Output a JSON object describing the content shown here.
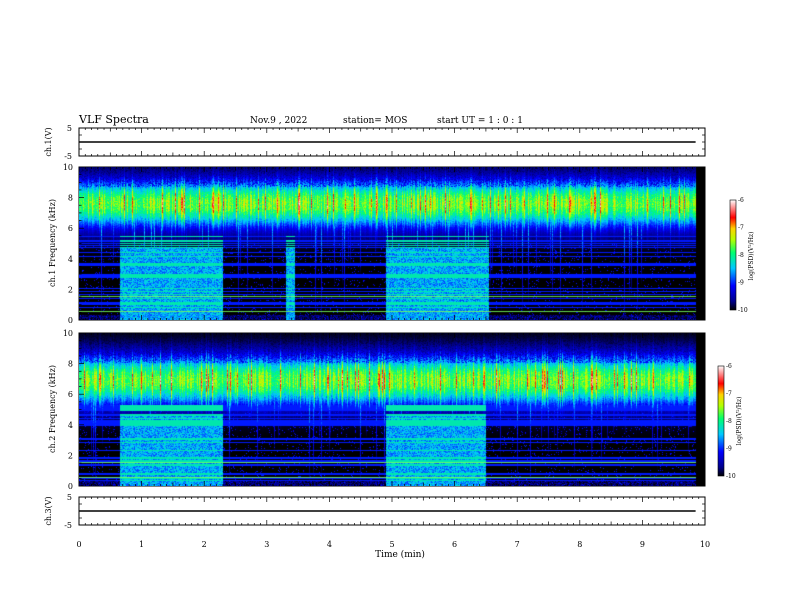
{
  "header": {
    "title": "VLF Spectra",
    "date": "Nov.9 , 2022",
    "station": "station= MOS",
    "start": "start UT = 1 : 0 : 1"
  },
  "chart_data": [
    {
      "type": "line",
      "panel": "ch1-voltage",
      "ylabel": "ch.1(V)",
      "yticks": [
        "5",
        "-5"
      ],
      "ylim": [
        -5,
        5
      ],
      "xlim": [
        0,
        10
      ],
      "x": [
        0,
        9.85
      ],
      "values": [
        0,
        0
      ]
    },
    {
      "type": "heatmap",
      "panel": "ch1-spectrogram",
      "ylabel": "ch.1 Frequency (kHz)",
      "yticks": [
        "0",
        "2",
        "4",
        "6",
        "8",
        "10"
      ],
      "ylim": [
        0,
        10
      ],
      "xlim": [
        0,
        10
      ],
      "data_end_min": 9.85,
      "main_band_khz": [
        5.8,
        9.4
      ],
      "enhanced_low_band": [
        [
          0.65,
          2.3
        ],
        [
          3.3,
          3.45
        ],
        [
          4.9,
          6.55
        ]
      ],
      "colorbar": {
        "label": "log(PSD)(V²/Hz)",
        "ticks": [
          "-6",
          "-7",
          "-8",
          "-9",
          "-10"
        ],
        "range": [
          -10,
          -6
        ]
      }
    },
    {
      "type": "heatmap",
      "panel": "ch2-spectrogram",
      "ylabel": "ch.2 Frequency (kHz)",
      "yticks": [
        "0",
        "2",
        "4",
        "6",
        "8",
        "10"
      ],
      "ylim": [
        0,
        10
      ],
      "xlim": [
        0,
        10
      ],
      "data_end_min": 9.85,
      "main_band_khz": [
        5.0,
        8.8
      ],
      "enhanced_low_band": [
        [
          0.65,
          2.3
        ],
        [
          4.9,
          6.5
        ]
      ],
      "colorbar": {
        "label": "log(PSD)(V²/Hz)",
        "ticks": [
          "-6",
          "-7",
          "-8",
          "-9",
          "-10"
        ],
        "range": [
          -10,
          -6
        ]
      }
    },
    {
      "type": "line",
      "panel": "ch3-voltage",
      "ylabel": "ch.3(V)",
      "yticks": [
        "5",
        "-5"
      ],
      "ylim": [
        -5,
        5
      ],
      "xlim": [
        0,
        10
      ],
      "x": [
        0,
        9.85
      ],
      "values": [
        0,
        0
      ]
    }
  ],
  "xaxis": {
    "label": "Time (min)",
    "ticks": [
      "0",
      "1",
      "2",
      "3",
      "4",
      "5",
      "6",
      "7",
      "8",
      "9",
      "10"
    ]
  }
}
